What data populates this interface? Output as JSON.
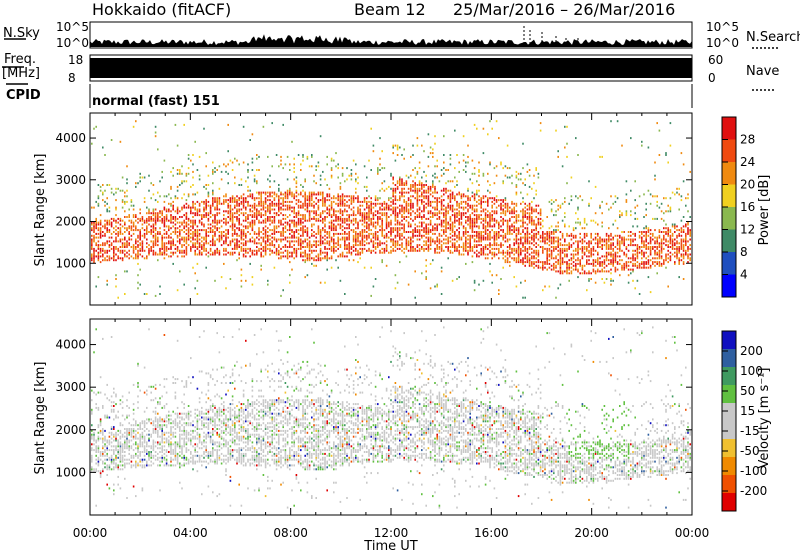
{
  "header": {
    "station": "Hokkaido (fitACF)",
    "beam": "Beam 12",
    "date_range": "25/Mar/2016 – 26/Mar/2016"
  },
  "top_panels": {
    "nsky_label": "N.Sky",
    "nsky_ticks": [
      "10^5",
      "10^0"
    ],
    "nsearch_label": "N.Search",
    "nsearch_ticks": [
      "10^5",
      "10^0"
    ],
    "freq_label": "Freq.",
    "freq_unit": "[MHz]",
    "freq_ticks": [
      "18",
      "8"
    ],
    "nave_label": "Nave",
    "nave_ticks": [
      "60",
      "0"
    ],
    "cpid_label": "CPID",
    "cpid_text": "normal (fast) 151"
  },
  "colors": {
    "power": [
      "#0000ff",
      "#1f4fbf",
      "#3f8a66",
      "#8ab84f",
      "#f0d020",
      "#f08a10",
      "#f04a10",
      "#e01010"
    ],
    "velocity": [
      "#e00000",
      "#f05000",
      "#f08a00",
      "#f0c030",
      "#c8c8c8",
      "#c8c8c8",
      "#60c040",
      "#3f9a60",
      "#2f5fa0",
      "#1010c0"
    ]
  },
  "chart_data": [
    {
      "type": "heatmap",
      "panel": "power",
      "ylabel": "Slant Range [km]",
      "yticks": [
        "1000",
        "2000",
        "3000",
        "4000"
      ],
      "ylim": [
        0,
        4600
      ],
      "colorbar_label": "Power [dB]",
      "colorbar_ticks": [
        "28",
        "24",
        "20",
        "16",
        "12",
        "8",
        "4"
      ],
      "colorbar_range": [
        0,
        32
      ]
    },
    {
      "type": "heatmap",
      "panel": "velocity",
      "ylabel": "Slant Range [km]",
      "yticks": [
        "1000",
        "2000",
        "3000",
        "4000"
      ],
      "ylim": [
        0,
        4600
      ],
      "colorbar_label": "Velocity [m s⁻¹]",
      "colorbar_ticks": [
        "200",
        "100",
        "50",
        "15",
        "-15",
        "-50",
        "-100",
        "-200"
      ]
    }
  ],
  "xaxis": {
    "ticks": [
      "00:00",
      "04:00",
      "08:00",
      "12:00",
      "16:00",
      "20:00",
      "00:00"
    ],
    "label": "Time UT",
    "range_hours": [
      0,
      24
    ]
  }
}
